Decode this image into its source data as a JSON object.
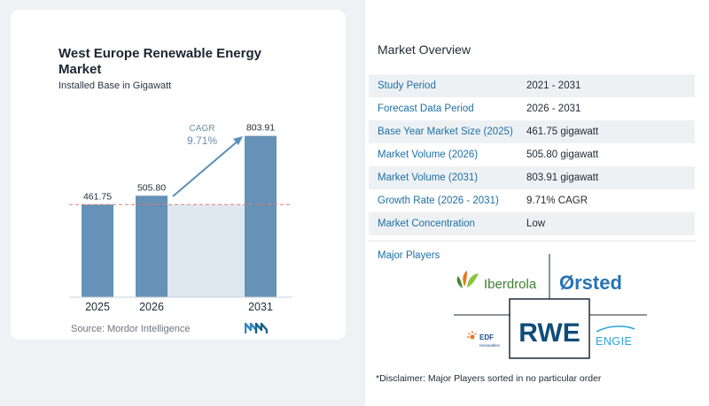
{
  "chart_data": {
    "type": "bar",
    "title": "West Europe Renewable Energy Market",
    "subtitle": "Installed Base in Gigawatt",
    "categories": [
      "2025",
      "2026",
      "2031"
    ],
    "values": [
      461.75,
      505.8,
      803.91
    ],
    "value_labels": [
      "461.75",
      "505.80",
      "803.91"
    ],
    "cagr_label": "CAGR",
    "cagr_value": "9.71%",
    "ylim": [
      0,
      900
    ],
    "reference_line": 461.75,
    "colors": {
      "bar": "#6592b6",
      "bar_highlight": "#a7c2d9",
      "band": "#dfe8f1",
      "arrow": "#5b90b8",
      "ref_line": "#e07b7b"
    }
  },
  "source": "Source: Mordor Intelligence",
  "overview": {
    "title": "Market Overview",
    "rows": [
      {
        "label": "Study Period",
        "value": "2021 - 2031"
      },
      {
        "label": "Forecast Data Period",
        "value": "2026 - 2031"
      },
      {
        "label": "Base Year Market Size (2025)",
        "value": "461.75 gigawatt"
      },
      {
        "label": "Market Volume (2026)",
        "value": "505.80 gigawatt"
      },
      {
        "label": "Market Volume (2031)",
        "value": "803.91 gigawatt"
      },
      {
        "label": "Growth Rate (2026 - 2031)",
        "value": "9.71% CAGR"
      },
      {
        "label": "Market Concentration",
        "value": "Low"
      }
    ]
  },
  "players": {
    "title": "Major Players",
    "logos": {
      "iberdrola": "Iberdrola",
      "orsted": "Ørsted",
      "rwe": "RWE",
      "edf": "EDF",
      "edf_sub": "renewables",
      "engie": "ENGIE"
    }
  },
  "disclaimer": "*Disclaimer: Major Players sorted in no particular order"
}
